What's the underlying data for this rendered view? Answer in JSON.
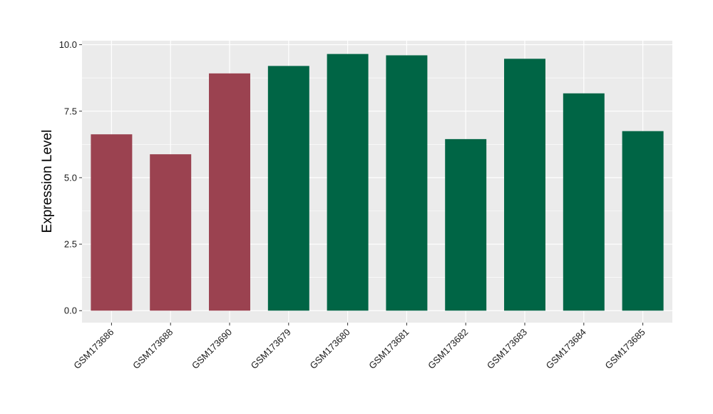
{
  "chart_data": {
    "type": "bar",
    "xlabel": "",
    "ylabel": "Expression Level",
    "ylim": [
      -0.45,
      10.15
    ],
    "yticks": [
      0.0,
      2.5,
      5.0,
      7.5,
      10.0
    ],
    "ytick_labels": [
      "0.0",
      "2.5",
      "5.0",
      "7.5",
      "10.0"
    ],
    "grid": true,
    "categories": [
      "GSM173686",
      "GSM173688",
      "GSM173690",
      "GSM173679",
      "GSM173680",
      "GSM173681",
      "GSM173682",
      "GSM173683",
      "GSM173684",
      "GSM173685"
    ],
    "values": [
      6.63,
      5.88,
      8.92,
      9.2,
      9.65,
      9.6,
      6.45,
      9.47,
      8.17,
      6.75
    ],
    "bar_colors": [
      "#9b4250",
      "#9b4250",
      "#9b4250",
      "#006545",
      "#006545",
      "#006545",
      "#006545",
      "#006545",
      "#006545",
      "#006545"
    ],
    "panel_background": "#ebebeb",
    "gridline_color": "#ffffff"
  }
}
